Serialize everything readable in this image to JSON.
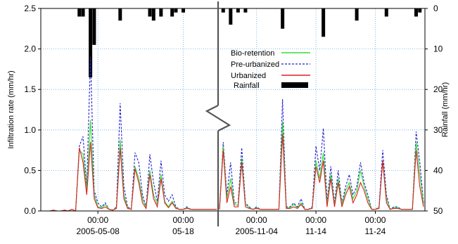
{
  "chart_data": {
    "type": "line",
    "left_axis": {
      "label": "Infiltration rate (mm/hr)",
      "ylim": [
        0,
        2.5
      ],
      "ticks": [
        "0.0",
        "0.5",
        "1.0",
        "1.5",
        "2.0",
        "2.5"
      ]
    },
    "right_axis": {
      "label": "Rainfall (mm/hr)",
      "ylim": [
        0,
        50
      ],
      "inverted": true,
      "ticks": [
        "0",
        "10",
        "20",
        "30",
        "40",
        "50"
      ]
    },
    "x_axis_break": true,
    "grid": true,
    "legend_position": "upper-center",
    "legend": [
      {
        "name": "Bio-retention",
        "style": "solid",
        "color": "#33dd33"
      },
      {
        "name": "Pre-urbanized",
        "style": "dashed",
        "color": "#2222cc"
      },
      {
        "name": "Urbanized",
        "style": "solid",
        "color": "#dd2222"
      },
      {
        "name": "Rainfall",
        "style": "bar",
        "color": "#000000"
      }
    ],
    "panels": [
      {
        "x_ticks": [
          {
            "top": "00:00",
            "bottom": "2005-05-08"
          },
          {
            "top": "00:00",
            "bottom": "05-18"
          }
        ],
        "n": 48,
        "tick_index": [
          15,
          38
        ],
        "series": [
          {
            "name": "Pre-urbanized",
            "values": [
              0,
              0,
              0,
              0.01,
              0,
              0,
              0.01,
              0,
              0.02,
              0,
              0.8,
              0.92,
              0.3,
              1.9,
              0.25,
              0.1,
              0.05,
              0.1,
              0.02,
              0.01,
              0.05,
              1.33,
              0.3,
              0.05,
              0.02,
              0.72,
              0.6,
              0.2,
              0.05,
              0.7,
              0.35,
              0.12,
              0.62,
              0.2,
              0.12,
              0.2,
              0.05,
              0.02,
              0.02,
              0.05,
              0.02,
              0.02,
              0.02,
              0.02,
              0.02,
              0.02,
              0.02,
              0.02
            ]
          },
          {
            "name": "Bio-retention",
            "values": [
              0,
              0,
              0,
              0.01,
              0,
              0,
              0.01,
              0,
              0.02,
              0,
              0.75,
              0.7,
              0.25,
              1.12,
              0.2,
              0.05,
              0.04,
              0.08,
              0.02,
              0.01,
              0.04,
              0.88,
              0.2,
              0.04,
              0.02,
              0.55,
              0.4,
              0.15,
              0.04,
              0.5,
              0.2,
              0.08,
              0.45,
              0.12,
              0.05,
              0.12,
              0.04,
              0.02,
              0.02,
              0.04,
              0.02,
              0.02,
              0.02,
              0.02,
              0.02,
              0.02,
              0.02,
              0.02
            ]
          },
          {
            "name": "Urbanized",
            "values": [
              0,
              0,
              0,
              0.01,
              0,
              0,
              0.01,
              0,
              0.02,
              0,
              0.78,
              0.6,
              0.2,
              0.85,
              0.15,
              0.04,
              0.03,
              0.05,
              0.02,
              0.01,
              0.03,
              0.78,
              0.15,
              0.03,
              0.02,
              0.52,
              0.35,
              0.1,
              0.03,
              0.45,
              0.15,
              0.05,
              0.4,
              0.1,
              0.04,
              0.1,
              0.03,
              0.02,
              0.02,
              0.03,
              0.02,
              0.02,
              0.02,
              0.02,
              0.02,
              0.02,
              0.02,
              0.02
            ]
          }
        ],
        "rainfall": [
          0,
          0,
          0,
          0,
          0,
          0,
          0,
          0,
          0,
          0,
          2,
          2,
          0,
          17,
          9,
          0,
          0,
          0,
          0,
          0,
          0,
          3,
          0,
          0,
          0,
          0,
          0,
          0,
          0,
          2,
          3,
          0,
          2,
          0,
          0,
          2,
          1,
          0,
          1,
          0,
          0,
          0,
          0,
          0,
          0,
          0,
          0,
          0
        ]
      },
      {
        "x_ticks": [
          {
            "top": "00:00",
            "bottom": "2005-11-04"
          },
          {
            "top": "00:00",
            "bottom": "11-14"
          },
          {
            "top": "00:00",
            "bottom": "11-24"
          }
        ],
        "n": 56,
        "tick_index": [
          10,
          26,
          42
        ],
        "series": [
          {
            "name": "Pre-urbanized",
            "values": [
              0.02,
              0.85,
              0.2,
              0.6,
              0.1,
              0.1,
              0.78,
              0.1,
              0.05,
              0.02,
              0.05,
              0.02,
              0.02,
              0.02,
              0.02,
              0.02,
              0.02,
              1.38,
              0.05,
              0.05,
              0.1,
              0.05,
              0.15,
              0.02,
              0.02,
              0.05,
              0.8,
              0.5,
              1.02,
              0.12,
              0.55,
              0.1,
              0.5,
              0.1,
              0.3,
              0.45,
              0.2,
              0.3,
              0.6,
              0.35,
              0.2,
              0.02,
              0.02,
              0.05,
              0.75,
              0.2,
              0.02,
              0.05,
              0.05,
              0.02,
              0.02,
              0.02,
              0.02,
              0.98,
              0.6,
              0.1
            ]
          },
          {
            "name": "Bio-retention",
            "values": [
              0.02,
              0.8,
              0.15,
              0.4,
              0.08,
              0.07,
              0.65,
              0.08,
              0.04,
              0.02,
              0.04,
              0.02,
              0.02,
              0.02,
              0.02,
              0.02,
              0.02,
              1.1,
              0.04,
              0.04,
              0.08,
              0.04,
              0.1,
              0.02,
              0.02,
              0.04,
              0.62,
              0.4,
              0.72,
              0.08,
              0.45,
              0.07,
              0.4,
              0.08,
              0.25,
              0.35,
              0.15,
              0.25,
              0.5,
              0.3,
              0.15,
              0.02,
              0.02,
              0.04,
              0.62,
              0.15,
              0.02,
              0.04,
              0.04,
              0.02,
              0.02,
              0.02,
              0.02,
              0.85,
              0.45,
              0.08
            ]
          },
          {
            "name": "Urbanized",
            "values": [
              0.02,
              0.75,
              0.1,
              0.3,
              0.05,
              0.05,
              0.6,
              0.05,
              0.03,
              0.02,
              0.03,
              0.02,
              0.02,
              0.02,
              0.02,
              0.02,
              0.02,
              0.95,
              0.03,
              0.03,
              0.05,
              0.03,
              0.08,
              0.02,
              0.02,
              0.03,
              0.55,
              0.35,
              0.62,
              0.05,
              0.4,
              0.05,
              0.35,
              0.05,
              0.2,
              0.3,
              0.1,
              0.2,
              0.35,
              0.25,
              0.1,
              0.02,
              0.02,
              0.03,
              0.62,
              0.1,
              0.02,
              0.03,
              0.03,
              0.02,
              0.02,
              0.02,
              0.02,
              0.75,
              0.3,
              0.05
            ]
          }
        ],
        "rainfall": [
          0,
          1,
          0,
          4,
          0,
          1,
          0,
          1,
          0,
          0,
          0,
          0,
          0,
          0,
          0,
          0,
          0,
          5,
          0,
          0,
          0,
          0,
          0,
          0,
          0,
          0,
          0,
          0,
          7,
          0,
          0,
          0,
          0,
          0,
          0,
          0,
          0,
          3,
          0,
          0,
          0,
          0,
          0,
          0,
          0,
          2,
          0,
          0,
          0,
          0,
          0,
          0,
          0,
          2,
          1,
          0
        ]
      }
    ]
  }
}
